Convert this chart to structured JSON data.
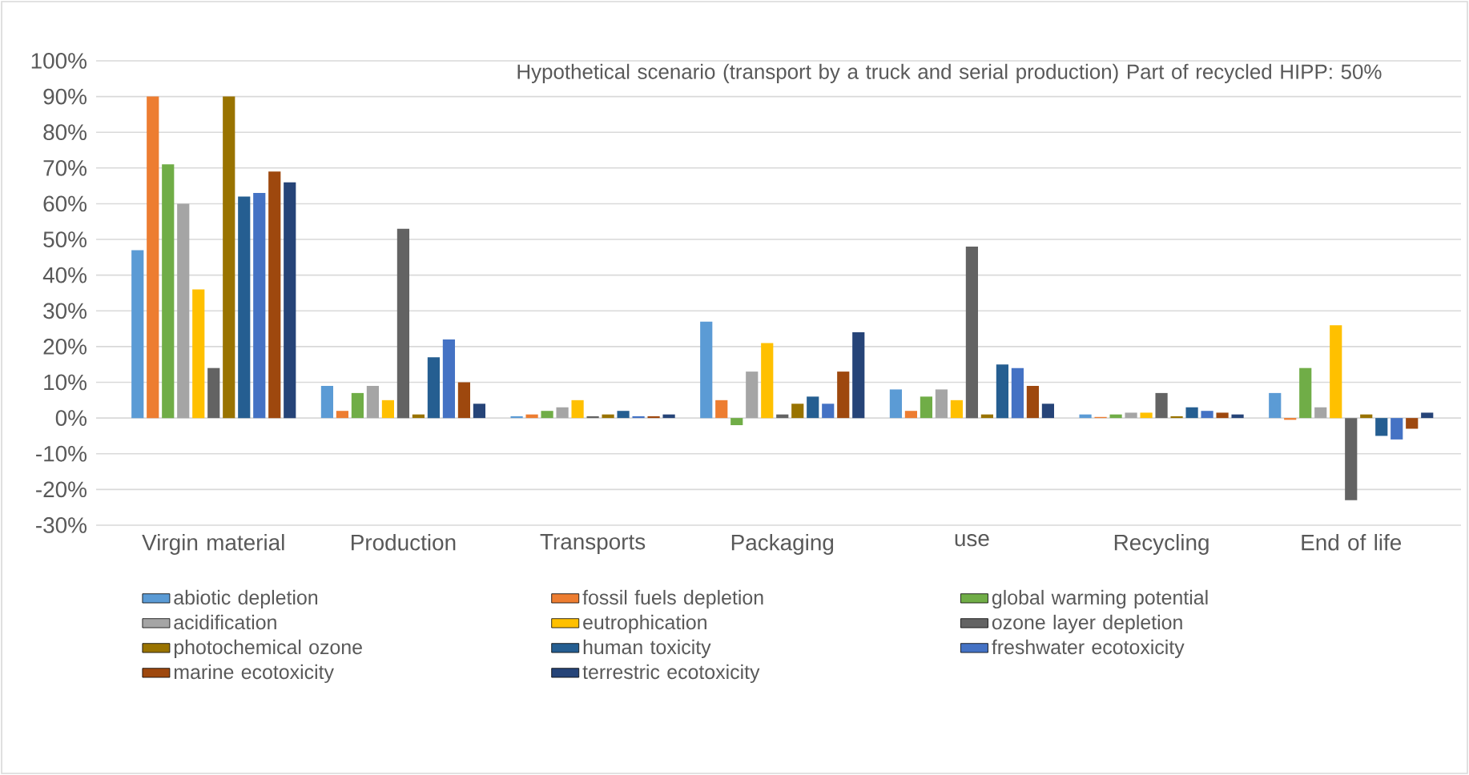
{
  "chart_data": {
    "type": "bar",
    "title": "Hypothetical scenario (transport by a truck and serial production) Part of recycled HIPP: 50%",
    "categories": [
      "Virgin material",
      "Production",
      "Transports",
      "Packaging",
      "use",
      "Recycling",
      "End of life"
    ],
    "series": [
      {
        "name": "abiotic depletion",
        "color": "#5b9bd5",
        "values": [
          47,
          9,
          0.5,
          27,
          8,
          1,
          7
        ]
      },
      {
        "name": "fossil fuels depletion",
        "color": "#ed7d31",
        "values": [
          90,
          2,
          1,
          5,
          2,
          0.3,
          -0.5
        ]
      },
      {
        "name": "global warming potential",
        "color": "#70ad47",
        "values": [
          71,
          7,
          2,
          -2,
          6,
          1,
          14
        ]
      },
      {
        "name": "acidification",
        "color": "#a5a5a5",
        "values": [
          60,
          9,
          3,
          13,
          8,
          1.5,
          3
        ]
      },
      {
        "name": "eutrophication",
        "color": "#ffc000",
        "values": [
          36,
          5,
          5,
          21,
          5,
          1.5,
          26
        ]
      },
      {
        "name": "ozone layer depletion",
        "color": "#636363",
        "values": [
          14,
          53,
          0.5,
          1,
          48,
          7,
          -23
        ]
      },
      {
        "name": "photochemical ozone",
        "color": "#997300",
        "values": [
          90,
          1,
          1,
          4,
          1,
          0.5,
          1
        ]
      },
      {
        "name": "human toxicity",
        "color": "#255e91",
        "values": [
          62,
          17,
          2,
          6,
          15,
          3,
          -5
        ]
      },
      {
        "name": "freshwater ecotoxicity",
        "color": "#4472c4",
        "values": [
          63,
          22,
          0.5,
          4,
          14,
          2,
          -6
        ]
      },
      {
        "name": "marine ecotoxicity",
        "color": "#9e480e",
        "values": [
          69,
          10,
          0.5,
          13,
          9,
          1.5,
          -3
        ]
      },
      {
        "name": "terrestric ecotoxicity",
        "color": "#264478",
        "values": [
          66,
          4,
          1,
          24,
          4,
          1,
          1.5
        ]
      }
    ],
    "ylim": [
      -30,
      100
    ],
    "yticks": [
      {
        "value": -30,
        "label": "-30%"
      },
      {
        "value": -20,
        "label": "-20%"
      },
      {
        "value": -10,
        "label": "-10%"
      },
      {
        "value": 0,
        "label": "0%"
      },
      {
        "value": 10,
        "label": "10%"
      },
      {
        "value": 20,
        "label": "20%"
      },
      {
        "value": 30,
        "label": "30%"
      },
      {
        "value": 40,
        "label": "40%"
      },
      {
        "value": 50,
        "label": "50%"
      },
      {
        "value": 60,
        "label": "60%"
      },
      {
        "value": 70,
        "label": "70%"
      },
      {
        "value": 80,
        "label": "80%"
      },
      {
        "value": 90,
        "label": "90%"
      },
      {
        "value": 100,
        "label": "100%"
      }
    ],
    "grid": "y",
    "legend": "bottom"
  }
}
